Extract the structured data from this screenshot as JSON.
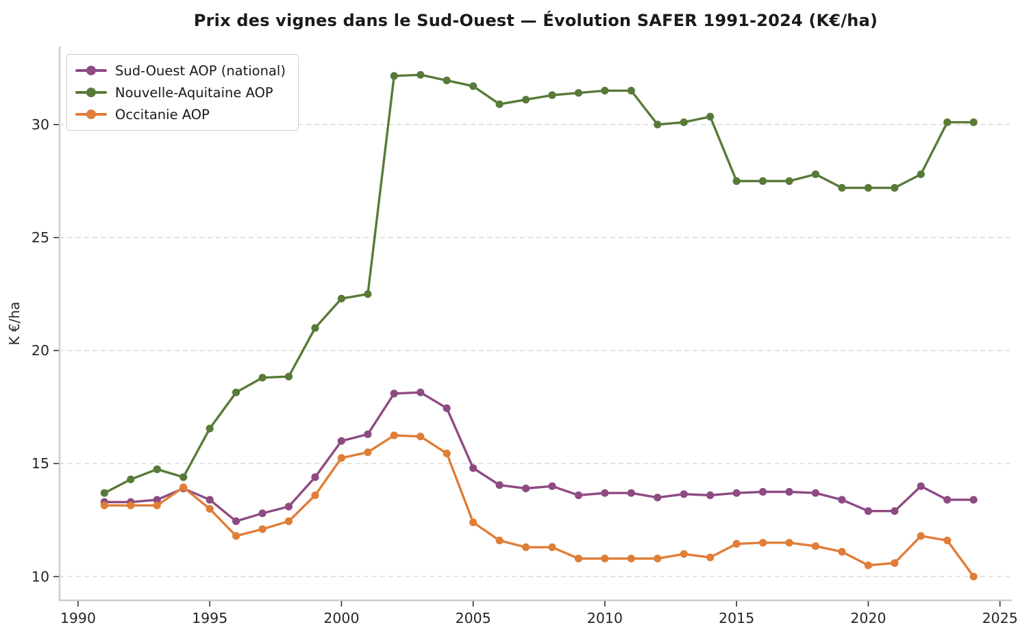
{
  "title": "Prix des vignes dans le Sud-Ouest — Évolution SAFER 1991-2024 (K€/ha)",
  "chart_data": {
    "type": "line",
    "title": "Prix des vignes dans le Sud-Ouest — Évolution SAFER 1991-2024 (K€/ha)",
    "xlabel": "",
    "ylabel": "K €/ha",
    "x": [
      1991,
      1992,
      1993,
      1994,
      1995,
      1996,
      1997,
      1998,
      1999,
      2000,
      2001,
      2002,
      2003,
      2004,
      2005,
      2006,
      2007,
      2008,
      2009,
      2010,
      2011,
      2012,
      2013,
      2014,
      2015,
      2016,
      2017,
      2018,
      2019,
      2020,
      2021,
      2022,
      2023,
      2024
    ],
    "series": [
      {
        "name": "Sud-Ouest AOP (national)",
        "color": "#8e4a82",
        "marker": "circle",
        "values": [
          13.3,
          13.3,
          13.4,
          13.9,
          13.4,
          12.45,
          12.8,
          13.1,
          14.4,
          16.0,
          16.3,
          18.1,
          18.15,
          17.45,
          14.8,
          14.05,
          13.9,
          14.0,
          13.6,
          13.7,
          13.7,
          13.5,
          13.65,
          13.6,
          13.7,
          13.75,
          13.75,
          13.7,
          13.4,
          12.9,
          12.9,
          14.0,
          13.4,
          13.4
        ]
      },
      {
        "name": "Nouvelle-Aquitaine AOP",
        "color": "#587a38",
        "marker": "circle",
        "values": [
          13.7,
          14.3,
          14.75,
          14.4,
          16.55,
          18.15,
          18.8,
          18.85,
          21.0,
          22.3,
          22.5,
          32.15,
          32.2,
          31.95,
          31.7,
          30.9,
          31.1,
          31.3,
          31.4,
          31.5,
          31.5,
          30.0,
          30.1,
          30.35,
          27.5,
          27.5,
          27.5,
          27.8,
          27.2,
          27.2,
          27.2,
          27.8,
          30.1,
          30.1
        ]
      },
      {
        "name": "Occitanie AOP",
        "color": "#e07d36",
        "marker": "circle",
        "values": [
          13.15,
          13.15,
          13.15,
          13.95,
          13.0,
          11.8,
          12.1,
          12.45,
          13.6,
          15.25,
          15.5,
          16.25,
          16.2,
          15.45,
          12.4,
          11.6,
          11.3,
          11.3,
          10.8,
          10.8,
          10.8,
          10.8,
          11.0,
          10.85,
          11.45,
          11.5,
          11.5,
          11.35,
          11.1,
          10.5,
          10.6,
          11.8,
          11.6,
          10.0
        ]
      }
    ],
    "xticks": [
      1990,
      1995,
      2000,
      2005,
      2010,
      2015,
      2020,
      2025
    ],
    "yticks": [
      10,
      15,
      20,
      25,
      30
    ],
    "xlim": [
      1989.3,
      2025.45
    ],
    "ylim": [
      8.95,
      33.45
    ],
    "grid": "horizontal-dashed",
    "legend_position": "upper-left",
    "colors": {
      "grid": "#dddddd",
      "spine": "#cdcdcd",
      "tick": "#333333",
      "tick_label": "#262626",
      "title": "#1a1a1a",
      "background": "#ffffff"
    }
  }
}
